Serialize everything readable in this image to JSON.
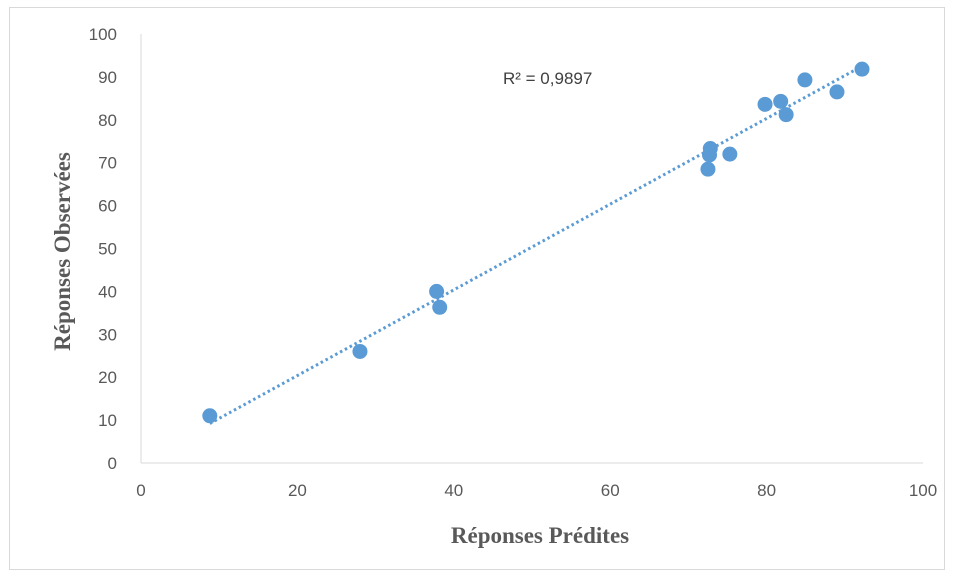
{
  "chart_data": {
    "type": "scatter",
    "title": "",
    "xlabel": "Réponses Prédites",
    "ylabel": "Réponses Observées",
    "xlim": [
      0,
      100
    ],
    "ylim": [
      0,
      100
    ],
    "x_ticks": [
      "0",
      "20",
      "40",
      "60",
      "80",
      "100"
    ],
    "y_ticks": [
      "0",
      "10",
      "20",
      "30",
      "40",
      "50",
      "60",
      "70",
      "80",
      "90",
      "100"
    ],
    "grid": false,
    "legend": "none",
    "marker_color": "#5b9bd5",
    "trendline_color": "#5b9bd5",
    "trendline_style": "dotted",
    "annotation": "R² = 0,9897",
    "points": [
      {
        "x": 8.8,
        "y": 11.0
      },
      {
        "x": 28.0,
        "y": 26.0
      },
      {
        "x": 37.8,
        "y": 40.0
      },
      {
        "x": 38.2,
        "y": 36.3
      },
      {
        "x": 72.5,
        "y": 68.5
      },
      {
        "x": 72.7,
        "y": 71.8
      },
      {
        "x": 72.8,
        "y": 73.3
      },
      {
        "x": 75.3,
        "y": 72.0
      },
      {
        "x": 79.8,
        "y": 83.6
      },
      {
        "x": 81.8,
        "y": 84.3
      },
      {
        "x": 82.5,
        "y": 81.2
      },
      {
        "x": 84.9,
        "y": 89.3
      },
      {
        "x": 89.0,
        "y": 86.5
      },
      {
        "x": 92.2,
        "y": 91.8
      }
    ],
    "trendline": {
      "x1": 8.8,
      "y1": 9.2,
      "x2": 92.2,
      "y2": 92.5
    }
  }
}
